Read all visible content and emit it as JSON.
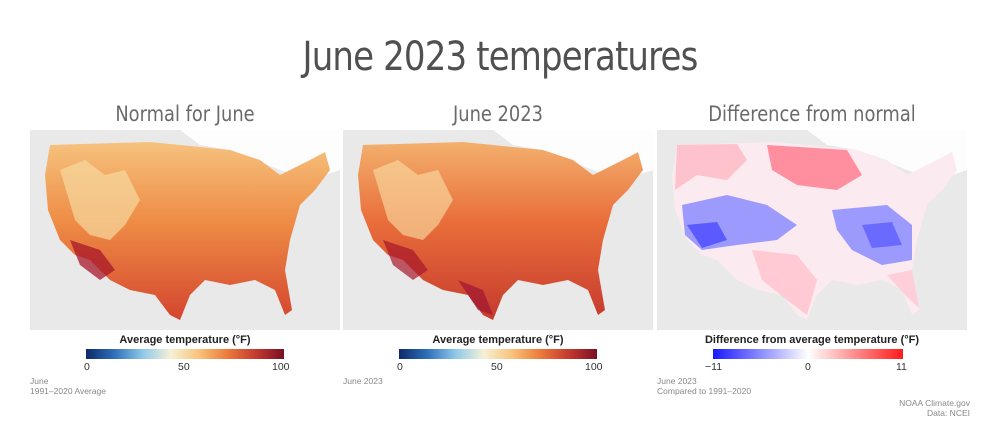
{
  "title": "June 2023 temperatures",
  "panels": [
    {
      "title": "Normal for June",
      "legend_title": "Average temperature (°F)",
      "ticks": [
        "0",
        "50",
        "100"
      ],
      "note_line1": "June",
      "note_line2": "1991–2020 Average",
      "palette": "sequential"
    },
    {
      "title": "June 2023",
      "legend_title": "Average temperature (°F)",
      "ticks": [
        "0",
        "50",
        "100"
      ],
      "note_line1": "June 2023",
      "note_line2": "",
      "palette": "sequential"
    },
    {
      "title": "Difference from normal",
      "legend_title": "Difference from average temperature (°F)",
      "ticks": [
        "−11",
        "0",
        "11"
      ],
      "note_line1": "June 2023",
      "note_line2": "Compared to 1991–2020",
      "palette": "diverging"
    }
  ],
  "credit": {
    "line1": "NOAA Climate.gov",
    "line2": "Data: NCEI"
  },
  "colors": {
    "sequential": [
      "#0c2a6b",
      "#2f6fb8",
      "#8ec8ea",
      "#f6f1d6",
      "#f8c27a",
      "#ec7a3a",
      "#c43a2f",
      "#7a1024"
    ],
    "diverging": [
      "#1a1aff",
      "#8c8cff",
      "#ffffff",
      "#ff8c8c",
      "#ff1a1a"
    ],
    "map_background": "#e9e9e9",
    "land_outside": "#ffffff"
  }
}
